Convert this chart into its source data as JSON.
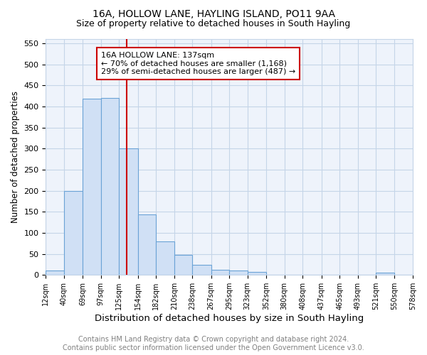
{
  "title": "16A, HOLLOW LANE, HAYLING ISLAND, PO11 9AA",
  "subtitle": "Size of property relative to detached houses in South Hayling",
  "xlabel": "Distribution of detached houses by size in South Hayling",
  "ylabel": "Number of detached properties",
  "bin_edges": [
    12,
    40,
    69,
    97,
    125,
    154,
    182,
    210,
    238,
    267,
    295,
    323,
    352,
    380,
    408,
    437,
    465,
    493,
    521,
    550,
    578
  ],
  "bar_heights": [
    10,
    200,
    418,
    420,
    300,
    143,
    79,
    48,
    25,
    13,
    10,
    8,
    0,
    0,
    0,
    0,
    0,
    0,
    5,
    0
  ],
  "bar_facecolor": "#d0e0f5",
  "bar_edgecolor": "#6ba3d6",
  "grid_color": "#c5d5e8",
  "property_size": 137,
  "vline_color": "#cc0000",
  "annotation_text": "16A HOLLOW LANE: 137sqm\n← 70% of detached houses are smaller (1,168)\n29% of semi-detached houses are larger (487) →",
  "annotation_box_edgecolor": "#cc0000",
  "annotation_box_facecolor": "#ffffff",
  "ylim": [
    0,
    560
  ],
  "yticks": [
    0,
    50,
    100,
    150,
    200,
    250,
    300,
    350,
    400,
    450,
    500,
    550
  ],
  "tick_labels": [
    "12sqm",
    "40sqm",
    "69sqm",
    "97sqm",
    "125sqm",
    "154sqm",
    "182sqm",
    "210sqm",
    "238sqm",
    "267sqm",
    "295sqm",
    "323sqm",
    "352sqm",
    "380sqm",
    "408sqm",
    "437sqm",
    "465sqm",
    "493sqm",
    "521sqm",
    "550sqm",
    "578sqm"
  ],
  "footer_line1": "Contains HM Land Registry data © Crown copyright and database right 2024.",
  "footer_line2": "Contains public sector information licensed under the Open Government Licence v3.0.",
  "background_color": "#eef3fb",
  "title_fontsize": 10,
  "subtitle_fontsize": 9,
  "xlabel_fontsize": 9.5,
  "ylabel_fontsize": 8.5,
  "footer_fontsize": 7,
  "annot_fontsize": 8
}
